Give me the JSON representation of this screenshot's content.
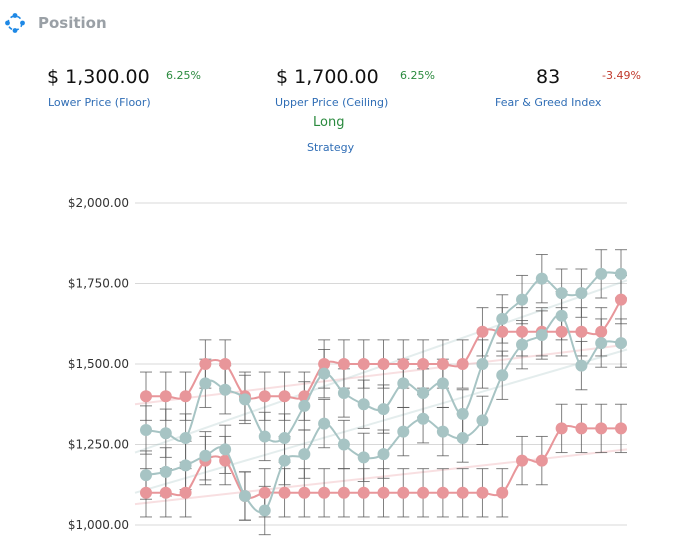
{
  "header": {
    "title": "Position",
    "icon": "position-icon"
  },
  "stats": {
    "floor": {
      "value": "$ 1,300.00",
      "change": "6.25%",
      "label": "Lower Price (Floor)"
    },
    "ceiling": {
      "value": "$ 1,700.00",
      "change": "6.25%",
      "label": "Upper Price (Ceiling)"
    },
    "fear_greed": {
      "value": "83",
      "change": "-3.49%",
      "label": "Fear & Greed Index"
    }
  },
  "strategy": {
    "value": "Long",
    "label": "Strategy"
  },
  "colors": {
    "pink": "#e8969a",
    "teal": "#a7c4c4",
    "error_bar": "#555555",
    "positive": "#2a8a3e",
    "negative": "#c0392b",
    "label_blue": "#2f6db5"
  },
  "chart_data": {
    "type": "line",
    "title": "",
    "xlabel": "",
    "ylabel": "",
    "ylim": [
      1000,
      2000
    ],
    "yticks": [
      "$1,000.00",
      "$1,250.00",
      "$1,500.00",
      "$1,750.00",
      "$2,000.00"
    ],
    "ytick_values": [
      1000,
      1250,
      1500,
      1750,
      2000
    ],
    "grid": "horizontal",
    "legend": "none",
    "x": [
      1,
      2,
      3,
      4,
      5,
      6,
      7,
      8,
      9,
      10,
      11,
      12,
      13,
      14,
      15,
      16,
      17,
      18,
      19,
      20,
      21,
      22,
      23,
      24,
      25
    ],
    "error_bar": 75,
    "series": [
      {
        "color": "#e8969a",
        "values": [
          1400,
          1400,
          1400,
          1500,
          1500,
          1400,
          1400,
          1400,
          1400,
          1500,
          1500,
          1500,
          1500,
          1500,
          1500,
          1500,
          1500,
          1600,
          1600,
          1600,
          1600,
          1600,
          1600,
          1600,
          1700
        ]
      },
      {
        "color": "#e8969a",
        "values": [
          1100,
          1100,
          1100,
          1200,
          1200,
          1090,
          1100,
          1100,
          1100,
          1100,
          1100,
          1100,
          1100,
          1100,
          1100,
          1100,
          1100,
          1100,
          1100,
          1200,
          1200,
          1300,
          1300,
          1300,
          1300
        ]
      },
      {
        "color": "#a7c4c4",
        "values": [
          1295,
          1285,
          1270,
          1440,
          1420,
          1390,
          1275,
          1270,
          1370,
          1470,
          1410,
          1375,
          1360,
          1440,
          1410,
          1440,
          1345,
          1500,
          1640,
          1700,
          1765,
          1720,
          1720,
          1780,
          1780
        ]
      },
      {
        "color": "#a7c4c4",
        "values": [
          1155,
          1165,
          1185,
          1215,
          1235,
          1090,
          1045,
          1200,
          1220,
          1315,
          1250,
          1210,
          1220,
          1290,
          1330,
          1290,
          1270,
          1325,
          1465,
          1560,
          1590,
          1650,
          1495,
          1565,
          1565
        ]
      }
    ],
    "trendlines": [
      {
        "color": "#e8969a",
        "from": 1375,
        "to": 1560
      },
      {
        "color": "#e8969a",
        "from": 1065,
        "to": 1235
      },
      {
        "color": "#a7c4c4",
        "from": 1225,
        "to": 1760
      },
      {
        "color": "#a7c4c4",
        "from": 1100,
        "to": 1545
      }
    ]
  }
}
